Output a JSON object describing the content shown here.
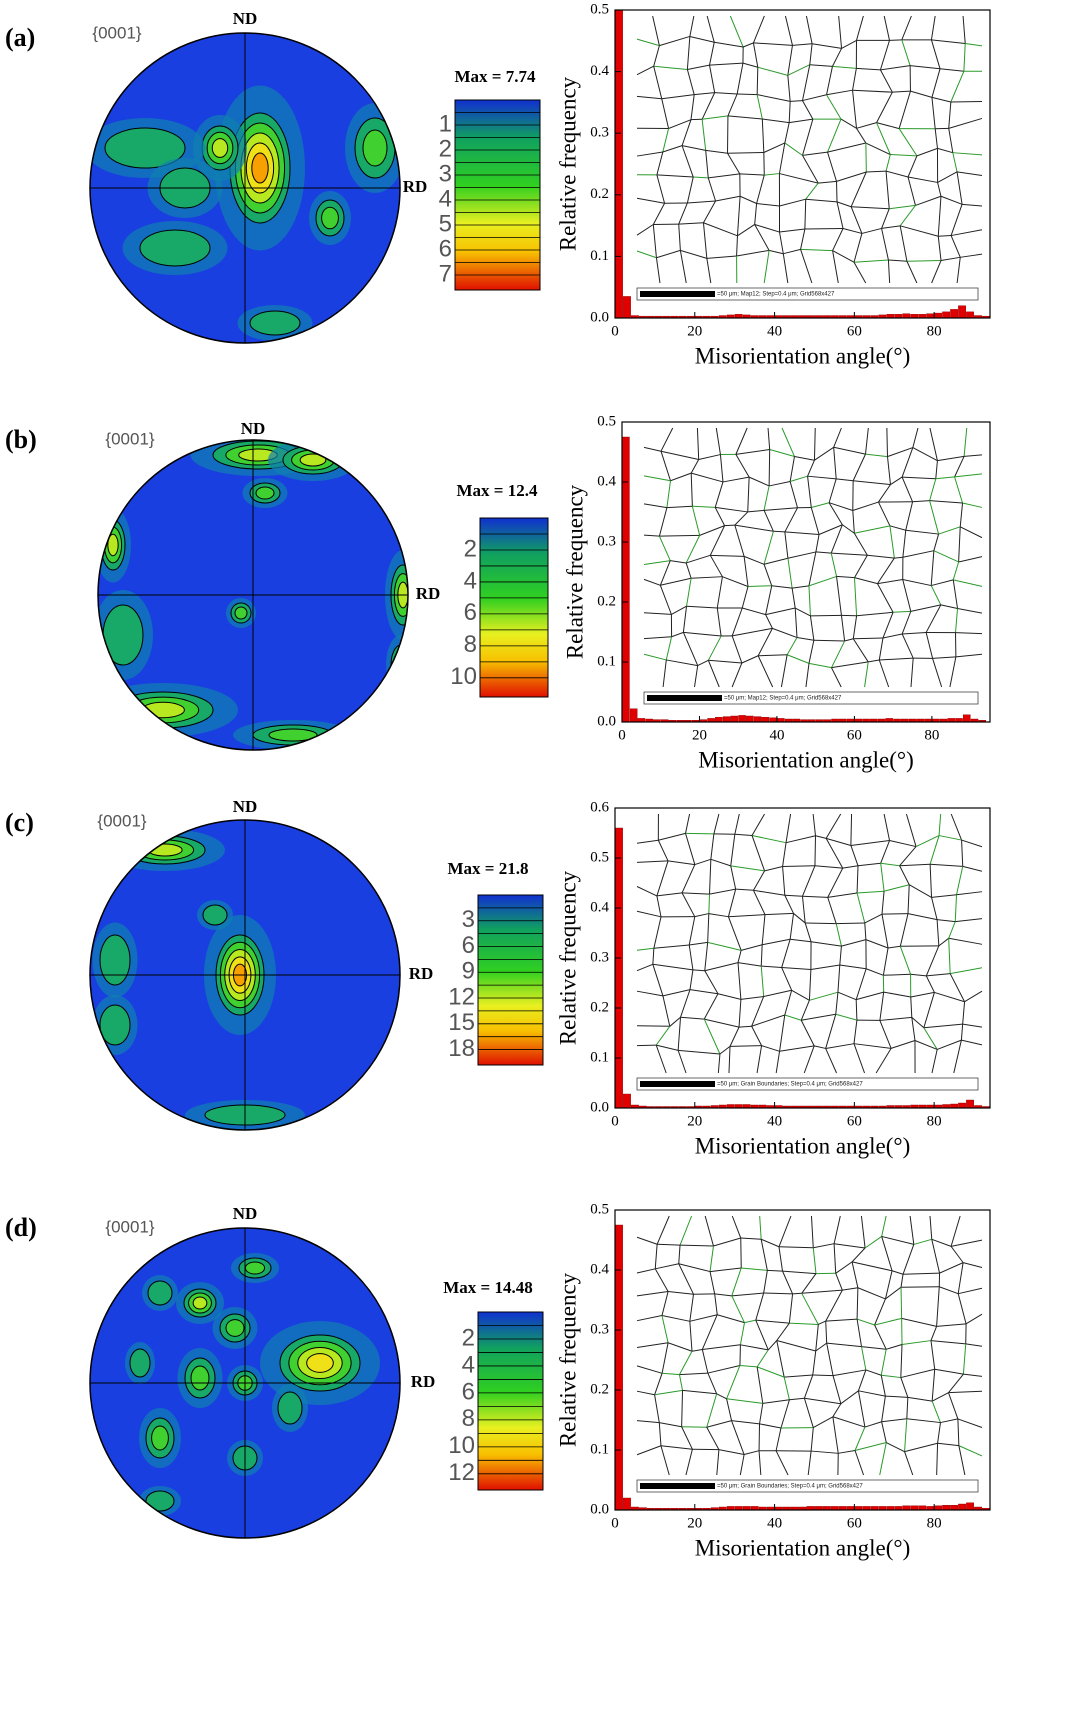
{
  "panels": [
    {
      "label": "(a)",
      "pole_figure": {
        "plane": "{0001}",
        "nd": "ND",
        "rd": "RD",
        "max_label": "Max = 7.74",
        "scale_ticks": [
          1,
          2,
          3,
          4,
          5,
          6,
          7
        ]
      }
    },
    {
      "label": "(b)",
      "pole_figure": {
        "plane": "{0001}",
        "nd": "ND",
        "rd": "RD",
        "max_label": "Max = 12.4",
        "scale_ticks": [
          2,
          4,
          6,
          8,
          10
        ]
      }
    },
    {
      "label": "(c)",
      "pole_figure": {
        "plane": "{0001}",
        "nd": "ND",
        "rd": "RD",
        "max_label": "Max = 21.8",
        "scale_ticks": [
          3,
          6,
          9,
          12,
          15,
          18
        ]
      }
    },
    {
      "label": "(d)",
      "pole_figure": {
        "plane": "{0001}",
        "nd": "ND",
        "rd": "RD",
        "max_label": "Max = 14.48",
        "scale_ticks": [
          2,
          4,
          6,
          8,
          10,
          12
        ]
      }
    }
  ],
  "chart_data": [
    {
      "type": "histogram",
      "y_label": "Relative frequency",
      "x_label": "Misorientation angle(°)",
      "color": "#e00000",
      "inset_caption": "=50 μm; Map12; Step=0.4 μm; Grid568x427",
      "bins": [
        0,
        2,
        4,
        6,
        8,
        10,
        12,
        14,
        16,
        18,
        20,
        22,
        24,
        26,
        28,
        30,
        32,
        34,
        36,
        38,
        40,
        42,
        44,
        46,
        48,
        50,
        52,
        54,
        56,
        58,
        60,
        62,
        64,
        66,
        68,
        70,
        72,
        74,
        76,
        78,
        80,
        82,
        84,
        86,
        88,
        90,
        92,
        94
      ],
      "values": [
        0.5,
        0.035,
        0.004,
        0.003,
        0.003,
        0.003,
        0.003,
        0.003,
        0.003,
        0.003,
        0.003,
        0.003,
        0.003,
        0.004,
        0.005,
        0.006,
        0.005,
        0.004,
        0.004,
        0.004,
        0.004,
        0.004,
        0.004,
        0.004,
        0.004,
        0.004,
        0.004,
        0.004,
        0.004,
        0.004,
        0.004,
        0.004,
        0.004,
        0.005,
        0.006,
        0.006,
        0.007,
        0.006,
        0.006,
        0.007,
        0.008,
        0.01,
        0.014,
        0.02,
        0.01,
        0.004,
        0.003
      ],
      "xlim": [
        0,
        94
      ],
      "ylim": [
        0,
        0.5
      ],
      "xticks": [
        0,
        20,
        40,
        60,
        80
      ],
      "yticks": [
        {
          "value": 0,
          "label": "0.0"
        },
        0.1,
        0.2,
        0.3,
        0.4,
        0.5
      ]
    },
    {
      "type": "histogram",
      "y_label": "Relative frequency",
      "x_label": "Misorientation angle(°)",
      "color": "#e00000",
      "inset_caption": "=50 μm; Map12; Step=0.4 μm; Grid568x427",
      "bins": [
        0,
        2,
        4,
        6,
        8,
        10,
        12,
        14,
        16,
        18,
        20,
        22,
        24,
        26,
        28,
        30,
        32,
        34,
        36,
        38,
        40,
        42,
        44,
        46,
        48,
        50,
        52,
        54,
        56,
        58,
        60,
        62,
        64,
        66,
        68,
        70,
        72,
        74,
        76,
        78,
        80,
        82,
        84,
        86,
        88,
        90,
        92,
        94
      ],
      "values": [
        0.475,
        0.022,
        0.006,
        0.005,
        0.004,
        0.004,
        0.003,
        0.003,
        0.003,
        0.003,
        0.004,
        0.006,
        0.008,
        0.009,
        0.01,
        0.011,
        0.01,
        0.009,
        0.008,
        0.007,
        0.006,
        0.005,
        0.005,
        0.004,
        0.004,
        0.004,
        0.004,
        0.005,
        0.005,
        0.005,
        0.005,
        0.005,
        0.005,
        0.005,
        0.006,
        0.005,
        0.005,
        0.005,
        0.005,
        0.005,
        0.005,
        0.005,
        0.006,
        0.006,
        0.012,
        0.005,
        0.003
      ],
      "xlim": [
        0,
        95
      ],
      "ylim": [
        0,
        0.5
      ],
      "xticks": [
        0,
        20,
        40,
        60,
        80
      ],
      "yticks": [
        {
          "value": 0,
          "label": "0.0"
        },
        0.1,
        0.2,
        0.3,
        0.4,
        0.5
      ]
    },
    {
      "type": "histogram",
      "y_label": "Relative frequency",
      "x_label": "Misorientation angle(°)",
      "color": "#e00000",
      "inset_caption": "=50 μm; Grain Boundaries; Step=0.4 μm; Grid568x427",
      "bins": [
        0,
        2,
        4,
        6,
        8,
        10,
        12,
        14,
        16,
        18,
        20,
        22,
        24,
        26,
        28,
        30,
        32,
        34,
        36,
        38,
        40,
        42,
        44,
        46,
        48,
        50,
        52,
        54,
        56,
        58,
        60,
        62,
        64,
        66,
        68,
        70,
        72,
        74,
        76,
        78,
        80,
        82,
        84,
        86,
        88,
        90,
        92,
        94
      ],
      "values": [
        0.56,
        0.028,
        0.006,
        0.004,
        0.003,
        0.003,
        0.003,
        0.003,
        0.003,
        0.003,
        0.004,
        0.004,
        0.005,
        0.006,
        0.007,
        0.007,
        0.007,
        0.006,
        0.006,
        0.005,
        0.005,
        0.004,
        0.004,
        0.004,
        0.004,
        0.004,
        0.004,
        0.004,
        0.004,
        0.004,
        0.004,
        0.004,
        0.004,
        0.004,
        0.005,
        0.005,
        0.005,
        0.006,
        0.006,
        0.006,
        0.006,
        0.007,
        0.008,
        0.01,
        0.016,
        0.005,
        0.003
      ],
      "xlim": [
        0,
        94
      ],
      "ylim": [
        0,
        0.6
      ],
      "xticks": [
        0,
        20,
        40,
        60,
        80
      ],
      "yticks": [
        {
          "value": 0,
          "label": "0.0"
        },
        0.1,
        0.2,
        0.3,
        0.4,
        0.5,
        0.6
      ]
    },
    {
      "type": "histogram",
      "y_label": "Relative frequency",
      "x_label": "Misorientation angle(°)",
      "color": "#e00000",
      "inset_caption": "=50 μm; Grain Boundaries; Step=0.4 μm; Grid568x427",
      "bins": [
        0,
        2,
        4,
        6,
        8,
        10,
        12,
        14,
        16,
        18,
        20,
        22,
        24,
        26,
        28,
        30,
        32,
        34,
        36,
        38,
        40,
        42,
        44,
        46,
        48,
        50,
        52,
        54,
        56,
        58,
        60,
        62,
        64,
        66,
        68,
        70,
        72,
        74,
        76,
        78,
        80,
        82,
        84,
        86,
        88,
        90,
        92,
        94
      ],
      "values": [
        0.475,
        0.02,
        0.005,
        0.004,
        0.003,
        0.003,
        0.003,
        0.003,
        0.003,
        0.003,
        0.003,
        0.003,
        0.004,
        0.005,
        0.006,
        0.006,
        0.006,
        0.006,
        0.005,
        0.005,
        0.005,
        0.005,
        0.005,
        0.005,
        0.006,
        0.006,
        0.006,
        0.006,
        0.006,
        0.006,
        0.006,
        0.006,
        0.006,
        0.006,
        0.006,
        0.006,
        0.007,
        0.007,
        0.007,
        0.006,
        0.007,
        0.008,
        0.008,
        0.01,
        0.012,
        0.005,
        0.003
      ],
      "xlim": [
        0,
        94
      ],
      "ylim": [
        0,
        0.5
      ],
      "xticks": [
        0,
        20,
        40,
        60,
        80
      ],
      "yticks": [
        {
          "value": 0,
          "label": "0.0"
        },
        0.1,
        0.2,
        0.3,
        0.4,
        0.5
      ]
    }
  ]
}
